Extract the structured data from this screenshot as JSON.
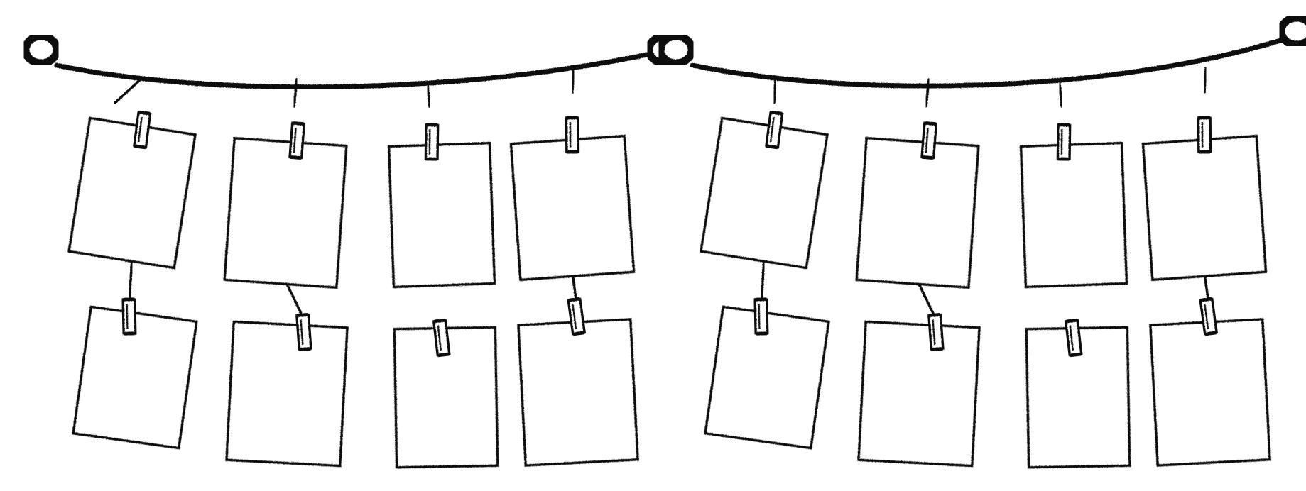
{
  "illustration": {
    "subject": "photo-garland",
    "style": "hand-drawn black line art",
    "ink_color": "#111111",
    "paper_color": "#ffffff",
    "background_color": "#ffffff",
    "garland_count": 2,
    "columns_per_garland": 4,
    "frames_per_column": 2,
    "frame_style": "blank rectangular photo frame",
    "clip_style": "clothespin"
  }
}
